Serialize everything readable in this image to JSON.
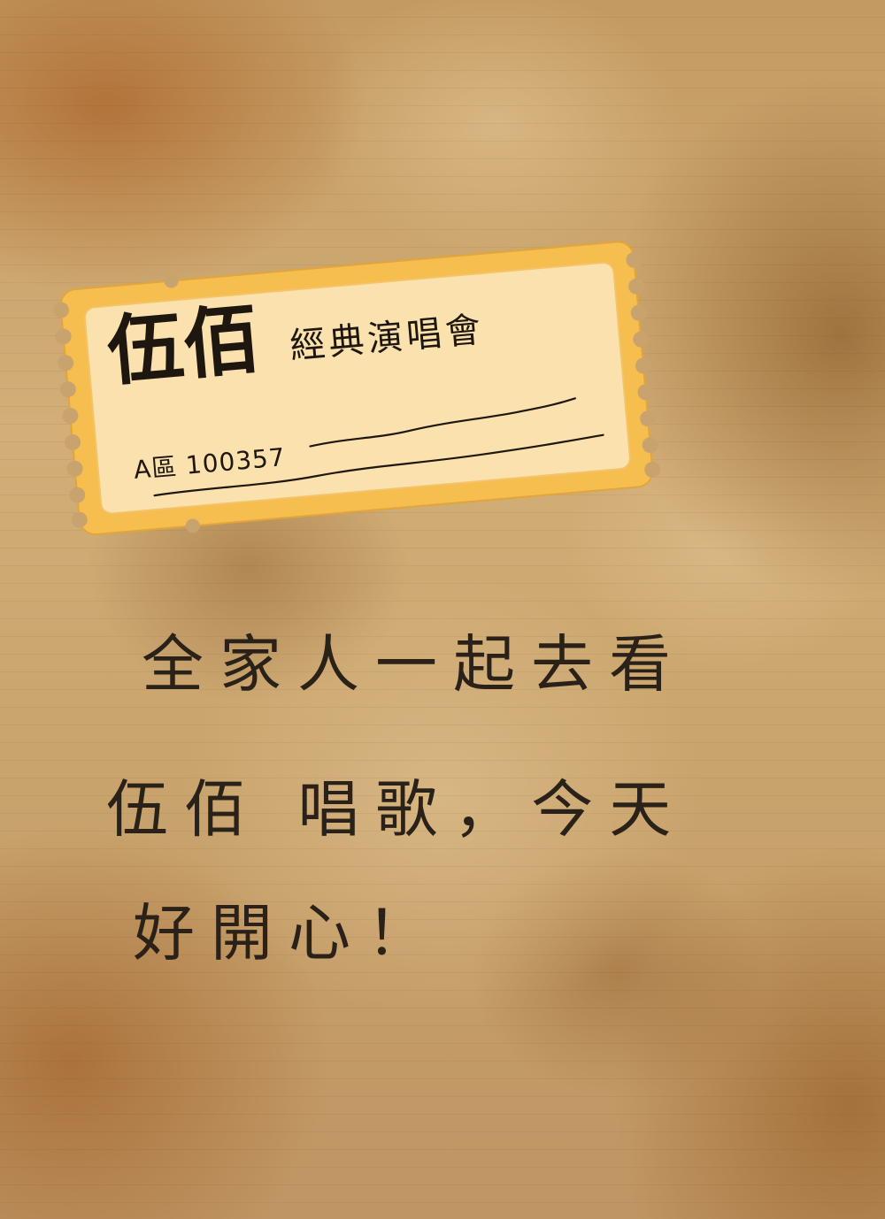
{
  "ticket": {
    "title": "伍佰",
    "subtitle": "經典演唱會",
    "seat": "A區 100357"
  },
  "message": {
    "line1": "全家人一起去看",
    "line2": "伍佰 唱歌，今天",
    "line3": "好開心！"
  },
  "colors": {
    "ticket_border": "#f6bd4f",
    "ticket_inner": "#fbe1ad",
    "ink": "#1d1710"
  }
}
